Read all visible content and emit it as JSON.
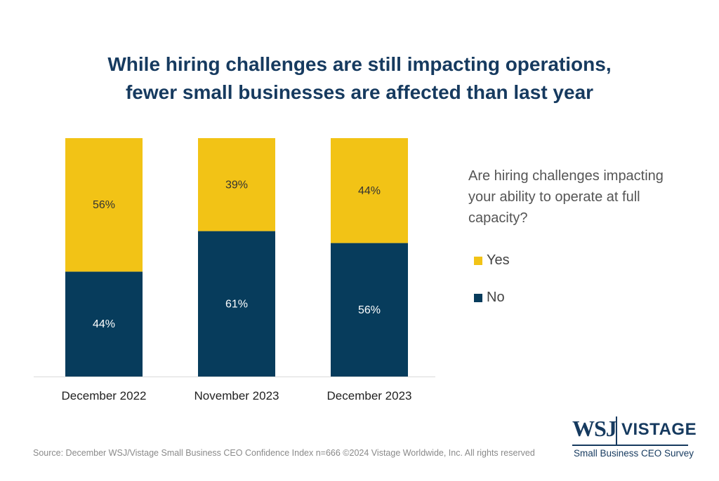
{
  "title": {
    "line1": "While hiring challenges are still impacting operations,",
    "line2": "fewer small businesses are affected than last year"
  },
  "legend": {
    "question": "Are hiring challenges impacting your ability to operate at full capacity?",
    "items": [
      {
        "label": "Yes",
        "color": "#f2c316"
      },
      {
        "label": "No",
        "color": "#073c5c"
      }
    ]
  },
  "source": "Source: December WSJ/Vistage Small Business CEO Confidence Index n=666 ©2024 Vistage Worldwide, Inc. All rights reserved",
  "logo": {
    "wsj": "WSJ",
    "vistage": "VISTAGE",
    "subtitle": "Small Business CEO Survey"
  },
  "chart_data": {
    "type": "bar",
    "stacked": true,
    "categories": [
      "December 2022",
      "November 2023",
      "December 2023"
    ],
    "series": [
      {
        "name": "No",
        "values": [
          44,
          61,
          56
        ],
        "labels": [
          "44%",
          "61%",
          "56%"
        ],
        "color": "#073c5c",
        "label_color": "#ffffff"
      },
      {
        "name": "Yes",
        "values": [
          56,
          39,
          44
        ],
        "labels": [
          "56%",
          "39%",
          "44%"
        ],
        "color": "#f2c316",
        "label_color": "#333333"
      }
    ],
    "ylim": [
      0,
      100
    ],
    "xlabel": "",
    "ylabel": "",
    "grid": false,
    "legend_position": "right"
  }
}
